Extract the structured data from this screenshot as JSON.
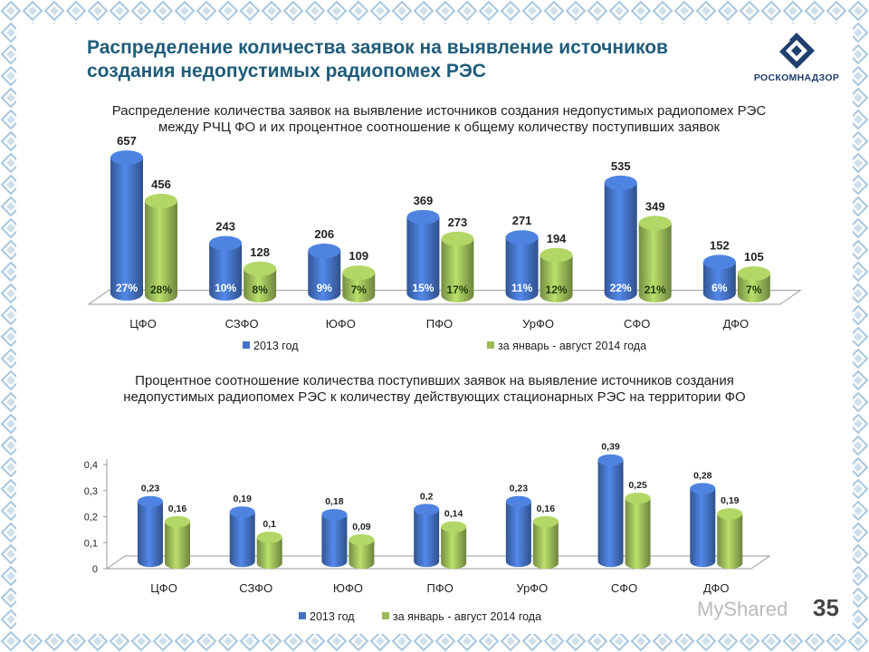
{
  "slide": {
    "title": "Распределение количества заявок на выявление источников создания недопустимых радиопомех РЭС",
    "logo_text": "РОСКОМНАДЗОР",
    "watermark": "MyShared",
    "page_number": "35"
  },
  "colors": {
    "blue": "#4472c4",
    "green": "#9bbb59",
    "title": "#1f5c7a"
  },
  "chart_data": [
    {
      "type": "bar",
      "title": "Распределение количества заявок на выявление источников создания недопустимых радиопомех РЭС между РЧЦ ФО и их процентное соотношение к общему количеству поступивших заявок",
      "categories": [
        "ЦФО",
        "СЗФО",
        "ЮФО",
        "ПФО",
        "УрФО",
        "СФО",
        "ДФО"
      ],
      "series": [
        {
          "name": "2013 год",
          "values": [
            657,
            243,
            206,
            369,
            271,
            535,
            152
          ],
          "percent_labels": [
            "27%",
            "10%",
            "9%",
            "15%",
            "11%",
            "22%",
            "6%"
          ]
        },
        {
          "name": "за январь - август 2014 года",
          "values": [
            456,
            128,
            109,
            273,
            194,
            349,
            105
          ],
          "percent_labels": [
            "28%",
            "8%",
            "7%",
            "17%",
            "12%",
            "21%",
            "7%"
          ]
        }
      ],
      "legend": "bottom"
    },
    {
      "type": "bar",
      "title": "Процентное соотношение количества поступивших заявок на выявление источников создания недопустимых радиопомех РЭС к количеству действующих стационарных РЭС на территории ФО",
      "categories": [
        "ЦФО",
        "СЗФО",
        "ЮФО",
        "ПФО",
        "УрФО",
        "СФО",
        "ДФО"
      ],
      "series": [
        {
          "name": "2013 год",
          "values": [
            0.23,
            0.19,
            0.18,
            0.2,
            0.23,
            0.39,
            0.28
          ],
          "labels": [
            "0,23",
            "0,19",
            "0,18",
            "0,2",
            "0,23",
            "0,39",
            "0,28"
          ]
        },
        {
          "name": "за январь - август 2014 года",
          "values": [
            0.16,
            0.1,
            0.09,
            0.14,
            0.16,
            0.25,
            0.19
          ],
          "labels": [
            "0,16",
            "0,1",
            "0,09",
            "0,14",
            "0,16",
            "0,25",
            "0,19"
          ]
        }
      ],
      "yticks": [
        "0",
        "0,1",
        "0,2",
        "0,3",
        "0,4"
      ],
      "ylim": [
        0,
        0.4
      ],
      "legend": "bottom"
    }
  ]
}
